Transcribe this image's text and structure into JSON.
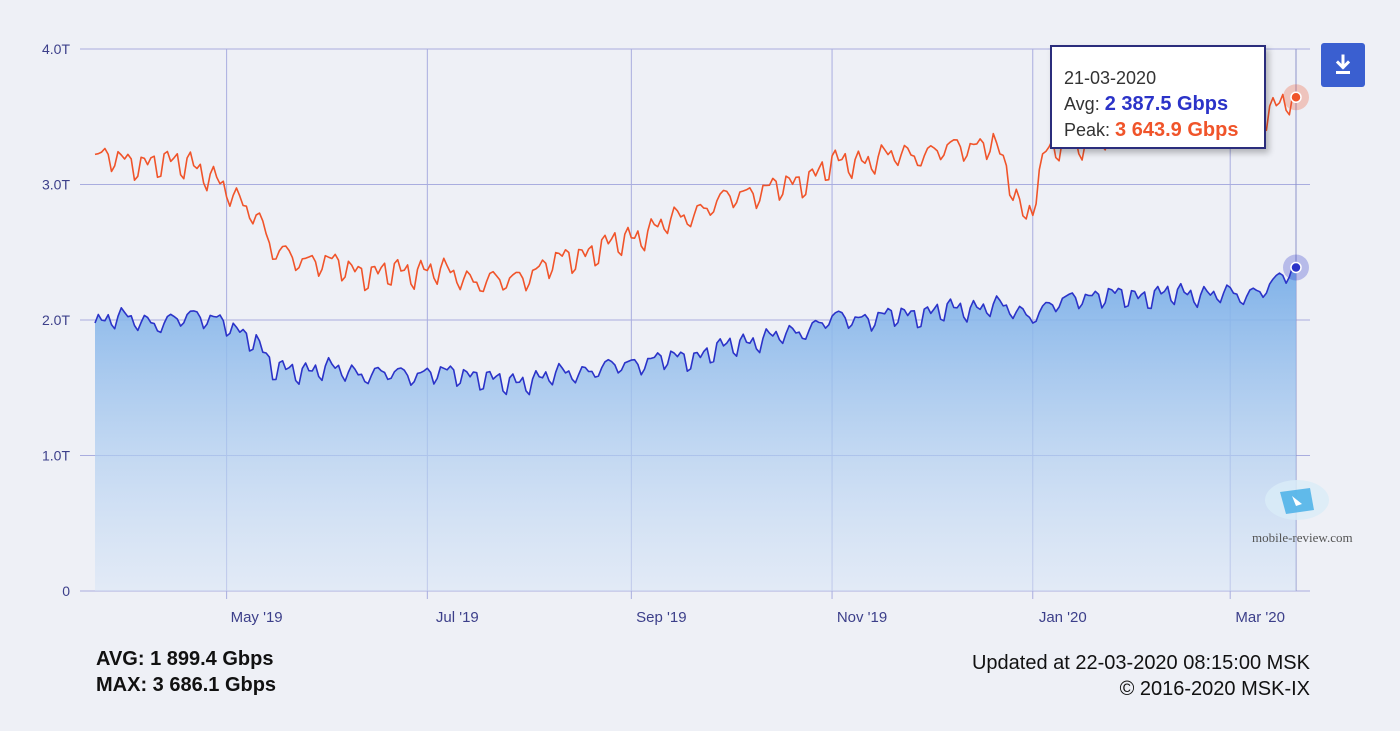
{
  "chart_data": {
    "type": "area",
    "x_start": "2019-03-22",
    "x_end": "2020-03-21",
    "y_unit": "Gbps",
    "ylim": [
      0,
      4000
    ],
    "y_ticks": [
      {
        "value": 0,
        "label": "0"
      },
      {
        "value": 1000,
        "label": "1.0T"
      },
      {
        "value": 2000,
        "label": "2.0T"
      },
      {
        "value": 3000,
        "label": "3.0T"
      },
      {
        "value": 4000,
        "label": "4.0T"
      }
    ],
    "x_ticks": [
      {
        "date": "2019-05-01",
        "label": "May '19"
      },
      {
        "date": "2019-07-01",
        "label": "Jul '19"
      },
      {
        "date": "2019-09-01",
        "label": "Sep '19"
      },
      {
        "date": "2019-11-01",
        "label": "Nov '19"
      },
      {
        "date": "2020-01-01",
        "label": "Jan '20"
      },
      {
        "date": "2020-03-01",
        "label": "Mar '20"
      }
    ],
    "grid": true,
    "series": [
      {
        "name": "Avg",
        "color": "#2b33c8",
        "fill": "area",
        "points": [
          [
            "2019-03-22",
            1960
          ],
          [
            "2019-04-01",
            2040
          ],
          [
            "2019-04-11",
            1950
          ],
          [
            "2019-04-20",
            2060
          ],
          [
            "2019-05-01",
            1960
          ],
          [
            "2019-05-10",
            1860
          ],
          [
            "2019-05-15",
            1630
          ],
          [
            "2019-06-01",
            1640
          ],
          [
            "2019-06-15",
            1600
          ],
          [
            "2019-07-01",
            1610
          ],
          [
            "2019-07-15",
            1600
          ],
          [
            "2019-07-25",
            1530
          ],
          [
            "2019-08-10",
            1600
          ],
          [
            "2019-08-25",
            1650
          ],
          [
            "2019-09-05",
            1700
          ],
          [
            "2019-09-20",
            1730
          ],
          [
            "2019-10-05",
            1840
          ],
          [
            "2019-10-20",
            1900
          ],
          [
            "2019-11-01",
            2010
          ],
          [
            "2019-11-15",
            2020
          ],
          [
            "2019-12-01",
            2060
          ],
          [
            "2019-12-20",
            2110
          ],
          [
            "2019-12-31",
            2040
          ],
          [
            "2020-01-15",
            2180
          ],
          [
            "2020-02-01",
            2180
          ],
          [
            "2020-02-20",
            2200
          ],
          [
            "2020-03-05",
            2180
          ],
          [
            "2020-03-15",
            2280
          ],
          [
            "2020-03-21",
            2387.5
          ]
        ]
      },
      {
        "name": "Peak",
        "color": "#f0542a",
        "fill": "none",
        "points": [
          [
            "2019-03-22",
            3200
          ],
          [
            "2019-04-01",
            3180
          ],
          [
            "2019-04-11",
            3150
          ],
          [
            "2019-04-20",
            3180
          ],
          [
            "2019-05-01",
            2950
          ],
          [
            "2019-05-10",
            2800
          ],
          [
            "2019-05-15",
            2500
          ],
          [
            "2019-06-01",
            2420
          ],
          [
            "2019-06-15",
            2340
          ],
          [
            "2019-07-01",
            2380
          ],
          [
            "2019-07-15",
            2300
          ],
          [
            "2019-07-25",
            2280
          ],
          [
            "2019-08-10",
            2440
          ],
          [
            "2019-08-25",
            2550
          ],
          [
            "2019-09-05",
            2650
          ],
          [
            "2019-09-20",
            2800
          ],
          [
            "2019-10-05",
            2940
          ],
          [
            "2019-10-20",
            3000
          ],
          [
            "2019-11-01",
            3150
          ],
          [
            "2019-11-15",
            3200
          ],
          [
            "2019-12-01",
            3240
          ],
          [
            "2019-12-20",
            3320
          ],
          [
            "2019-12-30",
            2730
          ],
          [
            "2020-01-05",
            3250
          ],
          [
            "2020-01-20",
            3340
          ],
          [
            "2020-02-05",
            3380
          ],
          [
            "2020-02-20",
            3420
          ],
          [
            "2020-03-10",
            3500
          ],
          [
            "2020-03-21",
            3643.9
          ]
        ]
      }
    ],
    "hover_date": "2020-03-21"
  },
  "tooltip": {
    "date": "21-03-2020",
    "avg_label": "Avg:",
    "avg_value": "2 387.5 Gbps",
    "peak_label": "Peak:",
    "peak_value": "3 643.9 Gbps"
  },
  "stats": {
    "avg": "AVG: 1 899.4 Gbps",
    "max": "MAX: 3 686.1 Gbps"
  },
  "footer": {
    "updated": "Updated at 22-03-2020 08:15:00 MSK",
    "copyright": "© 2016-2020 MSK-IX"
  },
  "download": {
    "icon": "download-icon",
    "color": "#3a5fd0"
  },
  "watermark": {
    "text": "mobile-review.com",
    "icon": "mobile-review-logo"
  }
}
